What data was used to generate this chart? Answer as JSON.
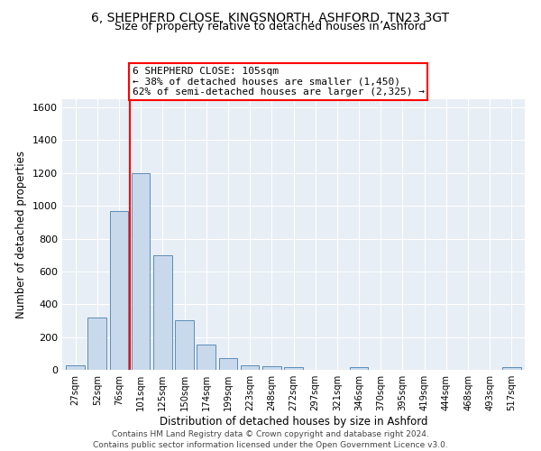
{
  "title": "6, SHEPHERD CLOSE, KINGSNORTH, ASHFORD, TN23 3GT",
  "subtitle": "Size of property relative to detached houses in Ashford",
  "xlabel": "Distribution of detached houses by size in Ashford",
  "ylabel": "Number of detached properties",
  "bar_labels": [
    "27sqm",
    "52sqm",
    "76sqm",
    "101sqm",
    "125sqm",
    "150sqm",
    "174sqm",
    "199sqm",
    "223sqm",
    "248sqm",
    "272sqm",
    "297sqm",
    "321sqm",
    "346sqm",
    "370sqm",
    "395sqm",
    "419sqm",
    "444sqm",
    "468sqm",
    "493sqm",
    "517sqm"
  ],
  "bar_values": [
    30,
    320,
    970,
    1200,
    700,
    300,
    155,
    70,
    30,
    20,
    15,
    0,
    0,
    15,
    0,
    0,
    0,
    0,
    0,
    0,
    15
  ],
  "bar_color": "#c9d9ec",
  "bar_edge_color": "#5b8db8",
  "vline_x": 2.5,
  "vline_color": "red",
  "annotation_text": "6 SHEPHERD CLOSE: 105sqm\n← 38% of detached houses are smaller (1,450)\n62% of semi-detached houses are larger (2,325) →",
  "annotation_box_color": "white",
  "annotation_box_edge": "red",
  "ylim": [
    0,
    1650
  ],
  "yticks": [
    0,
    200,
    400,
    600,
    800,
    1000,
    1200,
    1400,
    1600
  ],
  "bg_color": "#e8eef5",
  "footer": "Contains HM Land Registry data © Crown copyright and database right 2024.\nContains public sector information licensed under the Open Government Licence v3.0.",
  "title_fontsize": 10,
  "subtitle_fontsize": 9,
  "footer_fontsize": 6.5
}
